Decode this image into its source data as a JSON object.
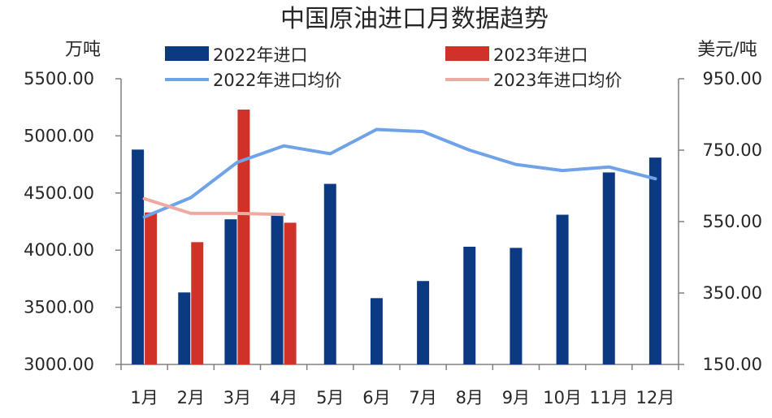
{
  "colors": {
    "bar_2022": "#0b3a82",
    "bar_2023": "#d13228",
    "line_2022": "#6fa2e8",
    "line_2023": "#eeaaa0",
    "axis": "#808080"
  },
  "chart_data": {
    "type": "bar",
    "title": "中国原油进口月数据趋势",
    "ylabel_left": "万吨",
    "ylabel_right": "美元/吨",
    "categories": [
      "1月",
      "2月",
      "3月",
      "4月",
      "5月",
      "6月",
      "7月",
      "8月",
      "9月",
      "10月",
      "11月",
      "12月"
    ],
    "ylim_left": [
      3000,
      5500
    ],
    "yticks_left": [
      "3000.00",
      "3500.00",
      "4000.00",
      "4500.00",
      "5000.00",
      "5500.00"
    ],
    "ylim_right": [
      150,
      950
    ],
    "yticks_right": [
      "150.00",
      "350.00",
      "550.00",
      "750.00",
      "950.00"
    ],
    "legend_position": "top",
    "series": [
      {
        "name": "2022年进口",
        "type": "bar",
        "axis": "left",
        "values": [
          4880,
          3630,
          4270,
          4320,
          4580,
          3580,
          3730,
          4030,
          4020,
          4310,
          4680,
          4810
        ]
      },
      {
        "name": "2023年进口",
        "type": "bar",
        "axis": "left",
        "values": [
          4330,
          4070,
          5230,
          4240,
          null,
          null,
          null,
          null,
          null,
          null,
          null,
          null
        ]
      },
      {
        "name": "2022年进口均价",
        "type": "line",
        "axis": "right",
        "values": [
          563,
          617,
          716,
          762,
          740,
          808,
          802,
          750,
          710,
          693,
          703,
          670
        ]
      },
      {
        "name": "2023年进口均价",
        "type": "line",
        "axis": "right",
        "values": [
          614,
          573,
          573,
          570,
          null,
          null,
          null,
          null,
          null,
          null,
          null,
          null
        ]
      }
    ]
  }
}
